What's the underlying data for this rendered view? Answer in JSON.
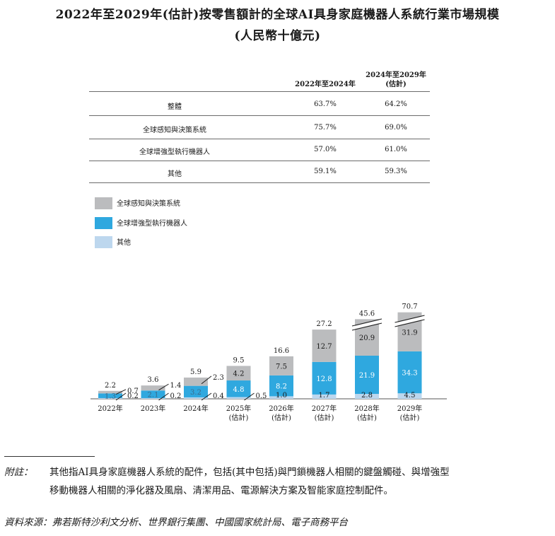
{
  "title_line1": "2022年至2029年(估計)按零售額計的全球AI具身家庭機器人系統行業市場規模",
  "title_line2": "(人民幣十億元)",
  "cagr_table": {
    "headers": [
      "2022年至2024年",
      "2024年至2029年",
      "(估計)"
    ],
    "rows": [
      {
        "label": "整體",
        "v1": "63.7%",
        "v2": "64.2%"
      },
      {
        "label": "全球感知與決策系統",
        "v1": "75.7%",
        "v2": "69.0%"
      },
      {
        "label": "全球增強型執行機器人",
        "v1": "57.0%",
        "v2": "61.0%"
      },
      {
        "label": "其他",
        "v1": "59.1%",
        "v2": "59.3%"
      }
    ]
  },
  "chart_data": {
    "type": "bar",
    "stacked": true,
    "categories": [
      "2022年",
      "2023年",
      "2024年",
      "2025年",
      "2026年",
      "2027年",
      "2028年",
      "2029年"
    ],
    "category_sublabels": [
      "",
      "",
      "",
      "(估計)",
      "(估計)",
      "(估計)",
      "(估計)",
      "(估計)"
    ],
    "series": [
      {
        "name": "其他",
        "color": "#bdd7ee",
        "values": [
          0.2,
          0.2,
          0.4,
          0.5,
          1.0,
          1.7,
          2.8,
          4.5
        ],
        "labels": [
          "0.2",
          "0.2",
          "0.4",
          "0.5",
          "1.0",
          "1.7",
          "2.8",
          "4.5"
        ]
      },
      {
        "name": "全球增強型執行機器人",
        "color": "#2fa8df",
        "values": [
          1.3,
          2.1,
          3.2,
          4.8,
          8.2,
          12.8,
          21.9,
          34.3
        ],
        "labels": [
          "1.3",
          "2.1",
          "3.2",
          "4.8",
          "8.2",
          "12.8",
          "21.9",
          "34.3"
        ]
      },
      {
        "name": "全球感知與決策系統",
        "color": "#bbbcbe",
        "values": [
          0.7,
          1.4,
          2.3,
          4.2,
          7.5,
          12.7,
          20.9,
          31.9
        ],
        "labels": [
          "0.7",
          "1.4",
          "2.3",
          "4.2",
          "7.5",
          "12.7",
          "20.9",
          "31.9"
        ]
      }
    ],
    "totals": [
      "2.2",
      "3.6",
      "5.9",
      "9.5",
      "16.6",
      "27.2",
      "45.6",
      "70.7"
    ],
    "legend": [
      "全球感知與決策系統",
      "全球增強型執行機器人",
      "其他"
    ],
    "legend_position": "top-left",
    "broken_axis_bars": [
      "2028年",
      "2029年"
    ]
  },
  "footnote": {
    "label": "附註：",
    "line1": "其他指AI具身家庭機器人系統的配件，包括(其中包括)與門鎖機器人相關的鍵盤觸碰、與增強型",
    "line2": "移動機器人相關的淨化器及風扇、清潔用品、電源解決方案及智能家庭控制配件。"
  },
  "source": "資料來源：弗若斯特沙利文分析、世界銀行集團、中國國家統計局、電子商務平台"
}
